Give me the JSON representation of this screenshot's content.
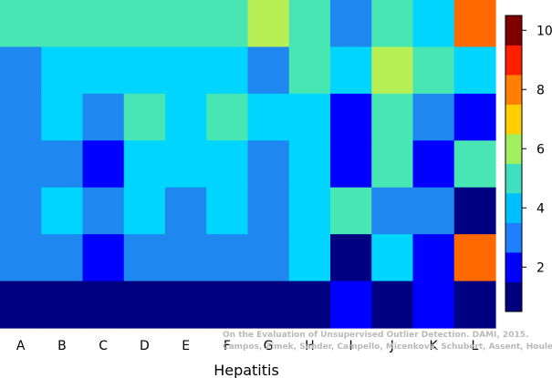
{
  "chart_data": {
    "type": "heatmap",
    "xlabel": "Hepatitis",
    "columns": [
      "A",
      "B",
      "C",
      "D",
      "E",
      "F",
      "G",
      "H",
      "I",
      "J",
      "K",
      "L"
    ],
    "rows_top_to_bottom": [
      [
        5,
        5,
        5,
        5,
        5,
        5,
        6,
        5,
        3,
        5,
        4,
        8
      ],
      [
        3,
        4,
        4,
        4,
        4,
        4,
        3,
        5,
        4,
        6,
        5,
        4
      ],
      [
        3,
        4,
        3,
        5,
        4,
        5,
        4,
        4,
        2,
        5,
        3,
        2
      ],
      [
        3,
        3,
        2,
        4,
        4,
        4,
        3,
        4,
        2,
        5,
        2,
        5
      ],
      [
        3,
        4,
        3,
        4,
        3,
        4,
        3,
        4,
        5,
        3,
        3,
        1
      ],
      [
        3,
        3,
        2,
        3,
        3,
        3,
        3,
        4,
        1,
        4,
        2,
        8
      ],
      [
        1,
        1,
        1,
        1,
        1,
        1,
        1,
        1,
        2,
        1,
        2,
        1
      ]
    ],
    "colorbar": {
      "range": [
        0.5,
        10.5
      ],
      "ticks": [
        "2",
        "4",
        "6",
        "8",
        "10"
      ],
      "colors": [
        "#00007f",
        "#0000ff",
        "#1f7fff",
        "#00bfff",
        "#3fdfbf",
        "#9fef5f",
        "#ffcf00",
        "#ff7f00",
        "#ff1f00",
        "#7f0000"
      ]
    },
    "colormap": {
      "1": "#000080",
      "2": "#0000ff",
      "3": "#1e88f0",
      "4": "#00d5ff",
      "5": "#48e6b2",
      "6": "#b7ef55",
      "7": "#ffd700",
      "8": "#ff6a00",
      "9": "#ff1500",
      "10": "#800000"
    },
    "annotation": [
      "On the Evaluation of Unsupervised Outlier Detection. DAMI, 2015.",
      "Campos, Zimek, Sander, Campello, Micenková, Schubert, Assent, Houle"
    ]
  }
}
